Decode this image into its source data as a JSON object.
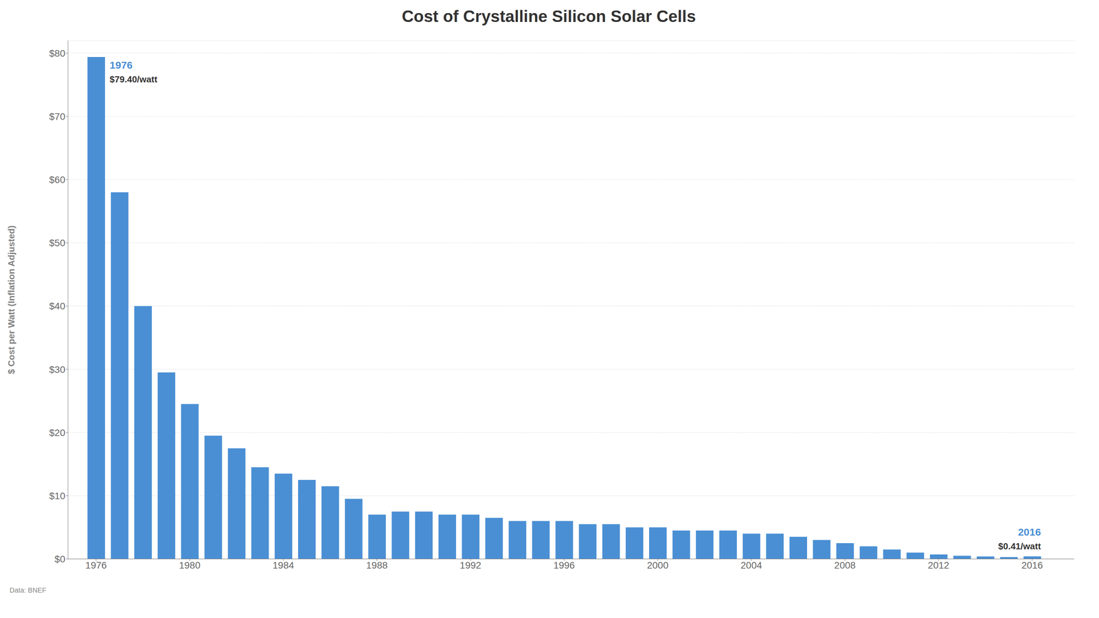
{
  "chart_data": {
    "type": "bar",
    "title": "Cost of Crystalline Silicon Solar Cells",
    "y_label": "$ Cost per Watt (Inflation Adjusted)",
    "x": [
      1976,
      1977,
      1978,
      1979,
      1980,
      1981,
      1982,
      1983,
      1984,
      1985,
      1986,
      1987,
      1988,
      1989,
      1990,
      1991,
      1992,
      1993,
      1994,
      1995,
      1996,
      1997,
      1998,
      1999,
      2000,
      2001,
      2002,
      2003,
      2004,
      2005,
      2006,
      2007,
      2008,
      2009,
      2010,
      2011,
      2012,
      2013,
      2014,
      2015,
      2016
    ],
    "values": [
      79.4,
      58.0,
      40.0,
      29.5,
      24.5,
      19.5,
      17.5,
      14.5,
      13.5,
      12.5,
      11.5,
      9.5,
      7.0,
      7.5,
      7.5,
      7.0,
      7.0,
      6.5,
      6.0,
      6.0,
      6.0,
      5.5,
      5.5,
      5.0,
      5.0,
      4.5,
      4.5,
      4.5,
      4.0,
      4.0,
      3.5,
      3.0,
      2.5,
      2.0,
      1.5,
      1.0,
      0.7,
      0.5,
      0.4,
      0.3,
      0.41
    ],
    "color": "#4a8fd4",
    "xlim": [
      1974.8,
      2017.8
    ],
    "xticks": [
      1976,
      1980,
      1984,
      1988,
      1992,
      1996,
      2000,
      2004,
      2008,
      2012,
      2016
    ],
    "ylim": [
      0,
      82
    ],
    "yticks": [
      {
        "value": 0,
        "label": "$0"
      },
      {
        "value": 10,
        "label": "$10"
      },
      {
        "value": 20,
        "label": "$20"
      },
      {
        "value": 30,
        "label": "$30"
      },
      {
        "value": 40,
        "label": "$40"
      },
      {
        "value": 50,
        "label": "$50"
      },
      {
        "value": 60,
        "label": "$60"
      },
      {
        "value": 70,
        "label": "$70"
      },
      {
        "value": 80,
        "label": "$80"
      }
    ],
    "grid": true,
    "annotations": [
      {
        "x": 1976,
        "y": 79.4,
        "lines": [
          "1976",
          "$79.40/watt"
        ]
      },
      {
        "x": 2016,
        "y": 0.41,
        "lines": [
          "2016",
          "$0.41/watt"
        ]
      }
    ],
    "source": "Data: BNEF"
  }
}
